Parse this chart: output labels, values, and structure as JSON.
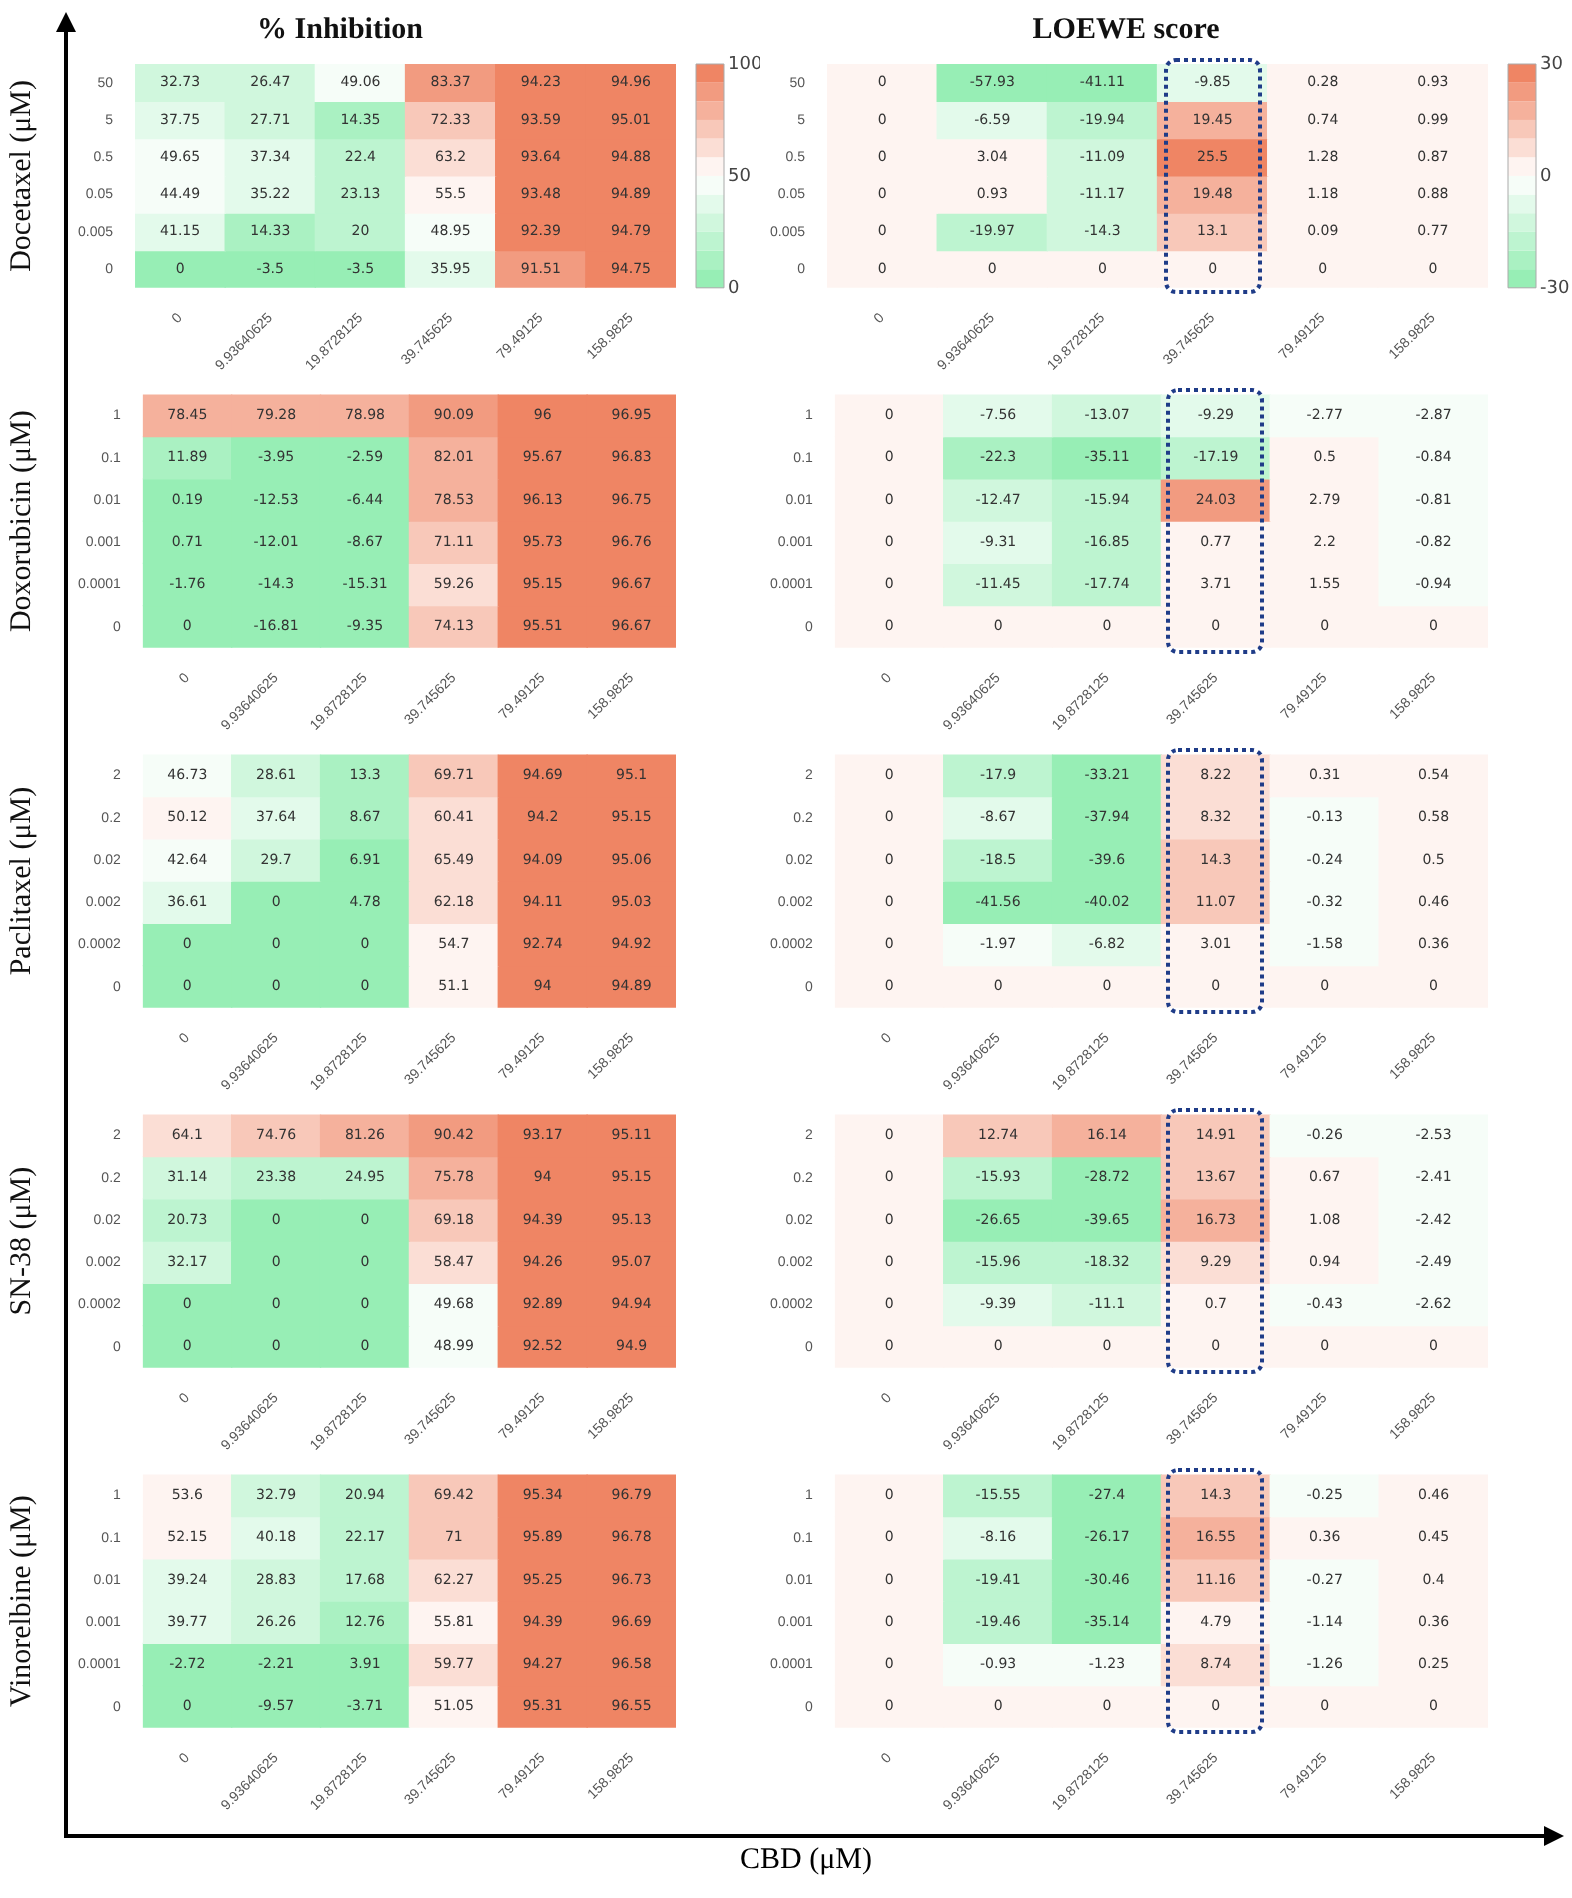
{
  "chart_data": [
    {
      "type": "heatmap",
      "title": "% Inhibition",
      "ylabel": "Docetaxel (μM)",
      "categories": [
        "0",
        "9.93640625",
        "19.8728125",
        "39.745625",
        "79.49125",
        "158.9825"
      ],
      "y_categories": [
        "50",
        "5",
        "0.5",
        "0.05",
        "0.005",
        "0"
      ],
      "clim": [
        0,
        100
      ],
      "cticks": [
        0,
        50,
        100
      ],
      "data_labels": true,
      "cells": [
        [
          32.73,
          26.47,
          49.06,
          83.37,
          94.23,
          94.96
        ],
        [
          37.75,
          27.71,
          14.35,
          72.33,
          93.59,
          95.01
        ],
        [
          49.65,
          37.34,
          22.4,
          63.2,
          93.64,
          94.88
        ],
        [
          44.49,
          35.22,
          23.13,
          55.5,
          93.48,
          94.89
        ],
        [
          41.15,
          14.33,
          20,
          48.95,
          92.39,
          94.79
        ],
        [
          0,
          -3.5,
          -3.5,
          35.95,
          91.51,
          94.75
        ]
      ]
    },
    {
      "type": "heatmap",
      "title": "LOEWE score",
      "categories": [
        "0",
        "9.93640625",
        "19.8728125",
        "39.745625",
        "79.49125",
        "158.9825"
      ],
      "y_categories": [
        "50",
        "5",
        "0.5",
        "0.05",
        "0.005",
        "0"
      ],
      "clim": [
        -30,
        30
      ],
      "cticks": [
        -30,
        0,
        30
      ],
      "data_labels": true,
      "cells": [
        [
          0,
          -57.93,
          -41.11,
          -9.85,
          0.28,
          0.93
        ],
        [
          0,
          -6.59,
          -19.94,
          19.45,
          0.74,
          0.99
        ],
        [
          0,
          3.04,
          -11.09,
          25.5,
          1.28,
          0.87
        ],
        [
          0,
          0.93,
          -11.17,
          19.48,
          1.18,
          0.88
        ],
        [
          0,
          -19.97,
          -14.3,
          13.1,
          0.09,
          0.77
        ],
        [
          0,
          0,
          0,
          0,
          0,
          0
        ]
      ]
    },
    {
      "type": "heatmap",
      "ylabel": "Doxorubicin (μM)",
      "categories": [
        "0",
        "9.93640625",
        "19.8728125",
        "39.745625",
        "79.49125",
        "158.9825"
      ],
      "y_categories": [
        "1",
        "0.1",
        "0.01",
        "0.001",
        "0.0001",
        "0"
      ],
      "data_labels": true,
      "cells": [
        [
          78.45,
          79.28,
          78.98,
          90.09,
          96,
          96.95
        ],
        [
          11.89,
          -3.95,
          -2.59,
          82.01,
          95.67,
          96.83
        ],
        [
          0.19,
          -12.53,
          -6.44,
          78.53,
          96.13,
          96.75
        ],
        [
          0.71,
          -12.01,
          -8.67,
          71.11,
          95.73,
          96.76
        ],
        [
          -1.76,
          -14.3,
          -15.31,
          59.26,
          95.15,
          96.67
        ],
        [
          0,
          -16.81,
          -9.35,
          74.13,
          95.51,
          96.67
        ]
      ]
    },
    {
      "type": "heatmap",
      "categories": [
        "0",
        "9.93640625",
        "19.8728125",
        "39.745625",
        "79.49125",
        "158.9825"
      ],
      "y_categories": [
        "1",
        "0.1",
        "0.01",
        "0.001",
        "0.0001",
        "0"
      ],
      "data_labels": true,
      "cells": [
        [
          0,
          -7.56,
          -13.07,
          -9.29,
          -2.77,
          -2.87
        ],
        [
          0,
          -22.3,
          -35.11,
          -17.19,
          0.5,
          -0.84
        ],
        [
          0,
          -12.47,
          -15.94,
          24.03,
          2.79,
          -0.81
        ],
        [
          0,
          -9.31,
          -16.85,
          0.77,
          2.2,
          -0.82
        ],
        [
          0,
          -11.45,
          -17.74,
          3.71,
          1.55,
          -0.94
        ],
        [
          0,
          0,
          0,
          0,
          0,
          0
        ]
      ]
    },
    {
      "type": "heatmap",
      "ylabel": "Paclitaxel (μM)",
      "categories": [
        "0",
        "9.93640625",
        "19.8728125",
        "39.745625",
        "79.49125",
        "158.9825"
      ],
      "y_categories": [
        "2",
        "0.2",
        "0.02",
        "0.002",
        "0.0002",
        "0"
      ],
      "data_labels": true,
      "cells": [
        [
          46.73,
          28.61,
          13.3,
          69.71,
          94.69,
          95.1
        ],
        [
          50.12,
          37.64,
          8.67,
          60.41,
          94.2,
          95.15
        ],
        [
          42.64,
          29.7,
          6.91,
          65.49,
          94.09,
          95.06
        ],
        [
          36.61,
          0,
          4.78,
          62.18,
          94.11,
          95.03
        ],
        [
          0,
          0,
          0,
          54.7,
          92.74,
          94.92
        ],
        [
          0,
          0,
          0,
          51.1,
          94,
          94.89
        ]
      ]
    },
    {
      "type": "heatmap",
      "categories": [
        "0",
        "9.93640625",
        "19.8728125",
        "39.745625",
        "79.49125",
        "158.9825"
      ],
      "y_categories": [
        "2",
        "0.2",
        "0.02",
        "0.002",
        "0.0002",
        "0"
      ],
      "data_labels": true,
      "cells": [
        [
          0,
          -17.9,
          -33.21,
          8.22,
          0.31,
          0.54
        ],
        [
          0,
          -8.67,
          -37.94,
          8.32,
          -0.13,
          0.58
        ],
        [
          0,
          -18.5,
          -39.6,
          14.3,
          -0.24,
          0.5
        ],
        [
          0,
          -41.56,
          -40.02,
          11.07,
          -0.32,
          0.46
        ],
        [
          0,
          -1.97,
          -6.82,
          3.01,
          -1.58,
          0.36
        ],
        [
          0,
          0,
          0,
          0,
          0,
          0
        ]
      ]
    },
    {
      "type": "heatmap",
      "ylabel": "SN-38 (μM)",
      "categories": [
        "0",
        "9.93640625",
        "19.8728125",
        "39.745625",
        "79.49125",
        "158.9825"
      ],
      "y_categories": [
        "2",
        "0.2",
        "0.02",
        "0.002",
        "0.0002",
        "0"
      ],
      "data_labels": true,
      "cells": [
        [
          64.1,
          74.76,
          81.26,
          90.42,
          93.17,
          95.11
        ],
        [
          31.14,
          23.38,
          24.95,
          75.78,
          94,
          95.15
        ],
        [
          20.73,
          0,
          0,
          69.18,
          94.39,
          95.13
        ],
        [
          32.17,
          0,
          0,
          58.47,
          94.26,
          95.07
        ],
        [
          0,
          0,
          0,
          49.68,
          92.89,
          94.94
        ],
        [
          0,
          0,
          0,
          48.99,
          92.52,
          94.9
        ]
      ]
    },
    {
      "type": "heatmap",
      "categories": [
        "0",
        "9.93640625",
        "19.8728125",
        "39.745625",
        "79.49125",
        "158.9825"
      ],
      "y_categories": [
        "2",
        "0.2",
        "0.02",
        "0.002",
        "0.0002",
        "0"
      ],
      "data_labels": true,
      "cells": [
        [
          0,
          12.74,
          16.14,
          14.91,
          -0.26,
          -2.53
        ],
        [
          0,
          -15.93,
          -28.72,
          13.67,
          0.67,
          -2.41
        ],
        [
          0,
          -26.65,
          -39.65,
          16.73,
          1.08,
          -2.42
        ],
        [
          0,
          -15.96,
          -18.32,
          9.29,
          0.94,
          -2.49
        ],
        [
          0,
          -9.39,
          -11.1,
          0.7,
          -0.43,
          -2.62
        ],
        [
          0,
          0,
          0,
          0,
          0,
          0
        ]
      ]
    },
    {
      "type": "heatmap",
      "ylabel": "Vinorelbine (μM)",
      "categories": [
        "0",
        "9.93640625",
        "19.8728125",
        "39.745625",
        "79.49125",
        "158.9825"
      ],
      "y_categories": [
        "1",
        "0.1",
        "0.01",
        "0.001",
        "0.0001",
        "0"
      ],
      "data_labels": true,
      "cells": [
        [
          53.6,
          32.79,
          20.94,
          69.42,
          95.34,
          96.79
        ],
        [
          52.15,
          40.18,
          22.17,
          71,
          95.89,
          96.78
        ],
        [
          39.24,
          28.83,
          17.68,
          62.27,
          95.25,
          96.73
        ],
        [
          39.77,
          26.26,
          12.76,
          55.81,
          94.39,
          96.69
        ],
        [
          -2.72,
          -2.21,
          3.91,
          59.77,
          94.27,
          96.58
        ],
        [
          0,
          -9.57,
          -3.71,
          51.05,
          95.31,
          96.55
        ]
      ]
    },
    {
      "type": "heatmap",
      "xlabel": "CBD (μM)",
      "categories": [
        "0",
        "9.93640625",
        "19.8728125",
        "39.745625",
        "79.49125",
        "158.9825"
      ],
      "y_categories": [
        "1",
        "0.1",
        "0.01",
        "0.001",
        "0.0001",
        "0"
      ],
      "data_labels": true,
      "cells": [
        [
          0,
          -15.55,
          -27.4,
          14.3,
          -0.25,
          0.46
        ],
        [
          0,
          -8.16,
          -26.17,
          16.55,
          0.36,
          0.45
        ],
        [
          0,
          -19.41,
          -30.46,
          11.16,
          -0.27,
          0.4
        ],
        [
          0,
          -19.46,
          -35.14,
          4.79,
          -1.14,
          0.36
        ],
        [
          0,
          -0.93,
          -1.23,
          8.74,
          -1.26,
          0.25
        ],
        [
          0,
          0,
          0,
          0,
          0,
          0
        ]
      ]
    }
  ]
}
